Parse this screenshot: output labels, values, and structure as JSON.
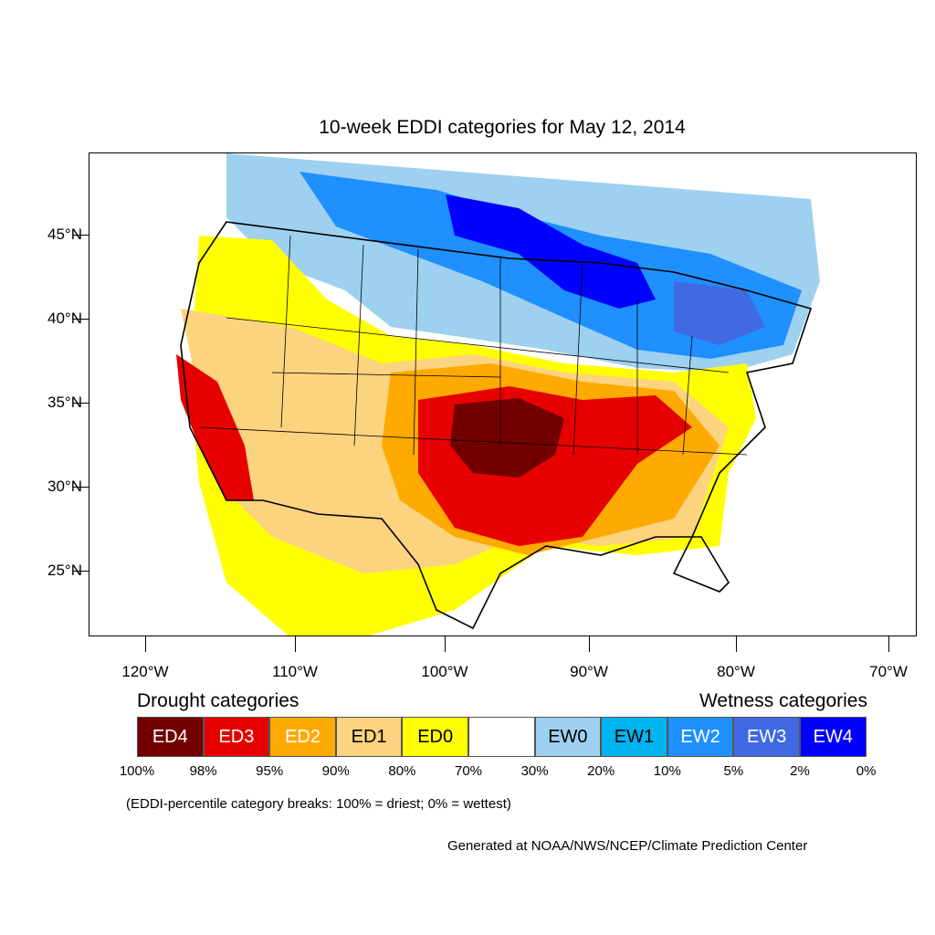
{
  "map": {
    "title": "10-week EDDI categories for May 12, 2014",
    "lat_labels": [
      "45°N",
      "40°N",
      "35°N",
      "30°N",
      "25°N"
    ],
    "lon_labels": [
      "120°W",
      "110°W",
      "100°W",
      "90°W",
      "80°W",
      "70°W"
    ]
  },
  "legend": {
    "drought_heading": "Drought categories",
    "wetness_heading": "Wetness categories",
    "categories": [
      {
        "label": "ED4",
        "color": "#730000"
      },
      {
        "label": "ED3",
        "color": "#e60000"
      },
      {
        "label": "ED2",
        "color": "#ffaa00"
      },
      {
        "label": "ED1",
        "color": "#fcd37f"
      },
      {
        "label": "ED0",
        "color": "#ffff00"
      },
      {
        "label": "",
        "color": "#ffffff"
      },
      {
        "label": "EW0",
        "color": "#9ed0f0"
      },
      {
        "label": "EW1",
        "color": "#00b4f0"
      },
      {
        "label": "EW2",
        "color": "#1e90ff"
      },
      {
        "label": "EW3",
        "color": "#4169e1"
      },
      {
        "label": "EW4",
        "color": "#0000ff"
      }
    ],
    "breaks": [
      "100%",
      "98%",
      "95%",
      "90%",
      "80%",
      "70%",
      "30%",
      "20%",
      "10%",
      "5%",
      "2%",
      "0%"
    ],
    "note": "(EDDI-percentile category breaks: 100% = driest; 0% = wettest)"
  },
  "credit": "Generated at NOAA/NWS/NCEP/Climate Prediction Center"
}
